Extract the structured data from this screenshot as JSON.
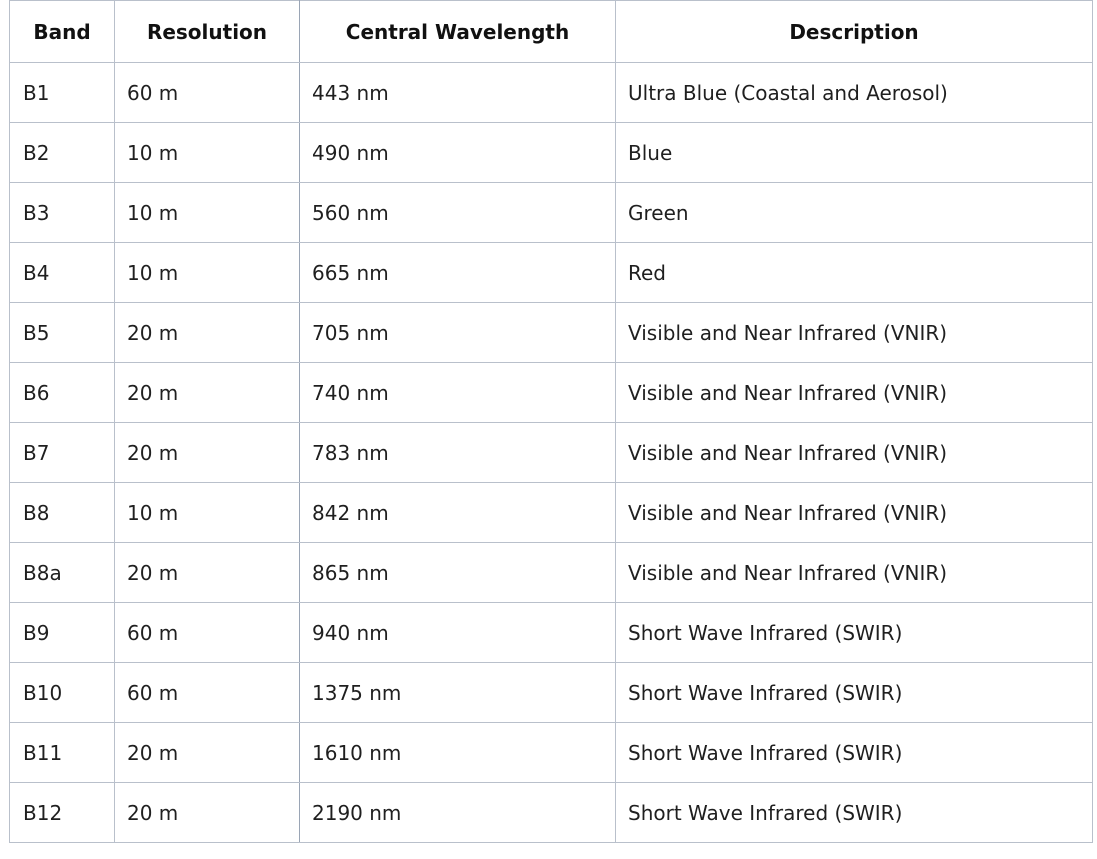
{
  "table": {
    "headers": [
      "Band",
      "Resolution",
      "Central Wavelength",
      "Description"
    ],
    "rows": [
      [
        "B1",
        "60 m",
        "443 nm",
        "Ultra Blue (Coastal and Aerosol)"
      ],
      [
        "B2",
        "10 m",
        "490 nm",
        "Blue"
      ],
      [
        "B3",
        "10 m",
        "560 nm",
        "Green"
      ],
      [
        "B4",
        "10 m",
        "665 nm",
        "Red"
      ],
      [
        "B5",
        "20 m",
        "705 nm",
        "Visible and Near Infrared (VNIR)"
      ],
      [
        "B6",
        "20 m",
        "740 nm",
        "Visible and Near Infrared (VNIR)"
      ],
      [
        "B7",
        "20 m",
        "783 nm",
        "Visible and Near Infrared (VNIR)"
      ],
      [
        "B8",
        "10 m",
        "842 nm",
        "Visible and Near Infrared (VNIR)"
      ],
      [
        "B8a",
        "20 m",
        "865 nm",
        "Visible and Near Infrared (VNIR)"
      ],
      [
        "B9",
        "60 m",
        "940 nm",
        "Short Wave Infrared (SWIR)"
      ],
      [
        "B10",
        "60 m",
        "1375 nm",
        "Short Wave Infrared (SWIR)"
      ],
      [
        "B11",
        "20 m",
        "1610 nm",
        "Short Wave Infrared (SWIR)"
      ],
      [
        "B12",
        "20 m",
        "2190 nm",
        "Short Wave Infrared (SWIR)"
      ]
    ]
  },
  "colors": {
    "border": "#b9c0cb",
    "text": "#1f1f1f",
    "background": "#ffffff"
  }
}
